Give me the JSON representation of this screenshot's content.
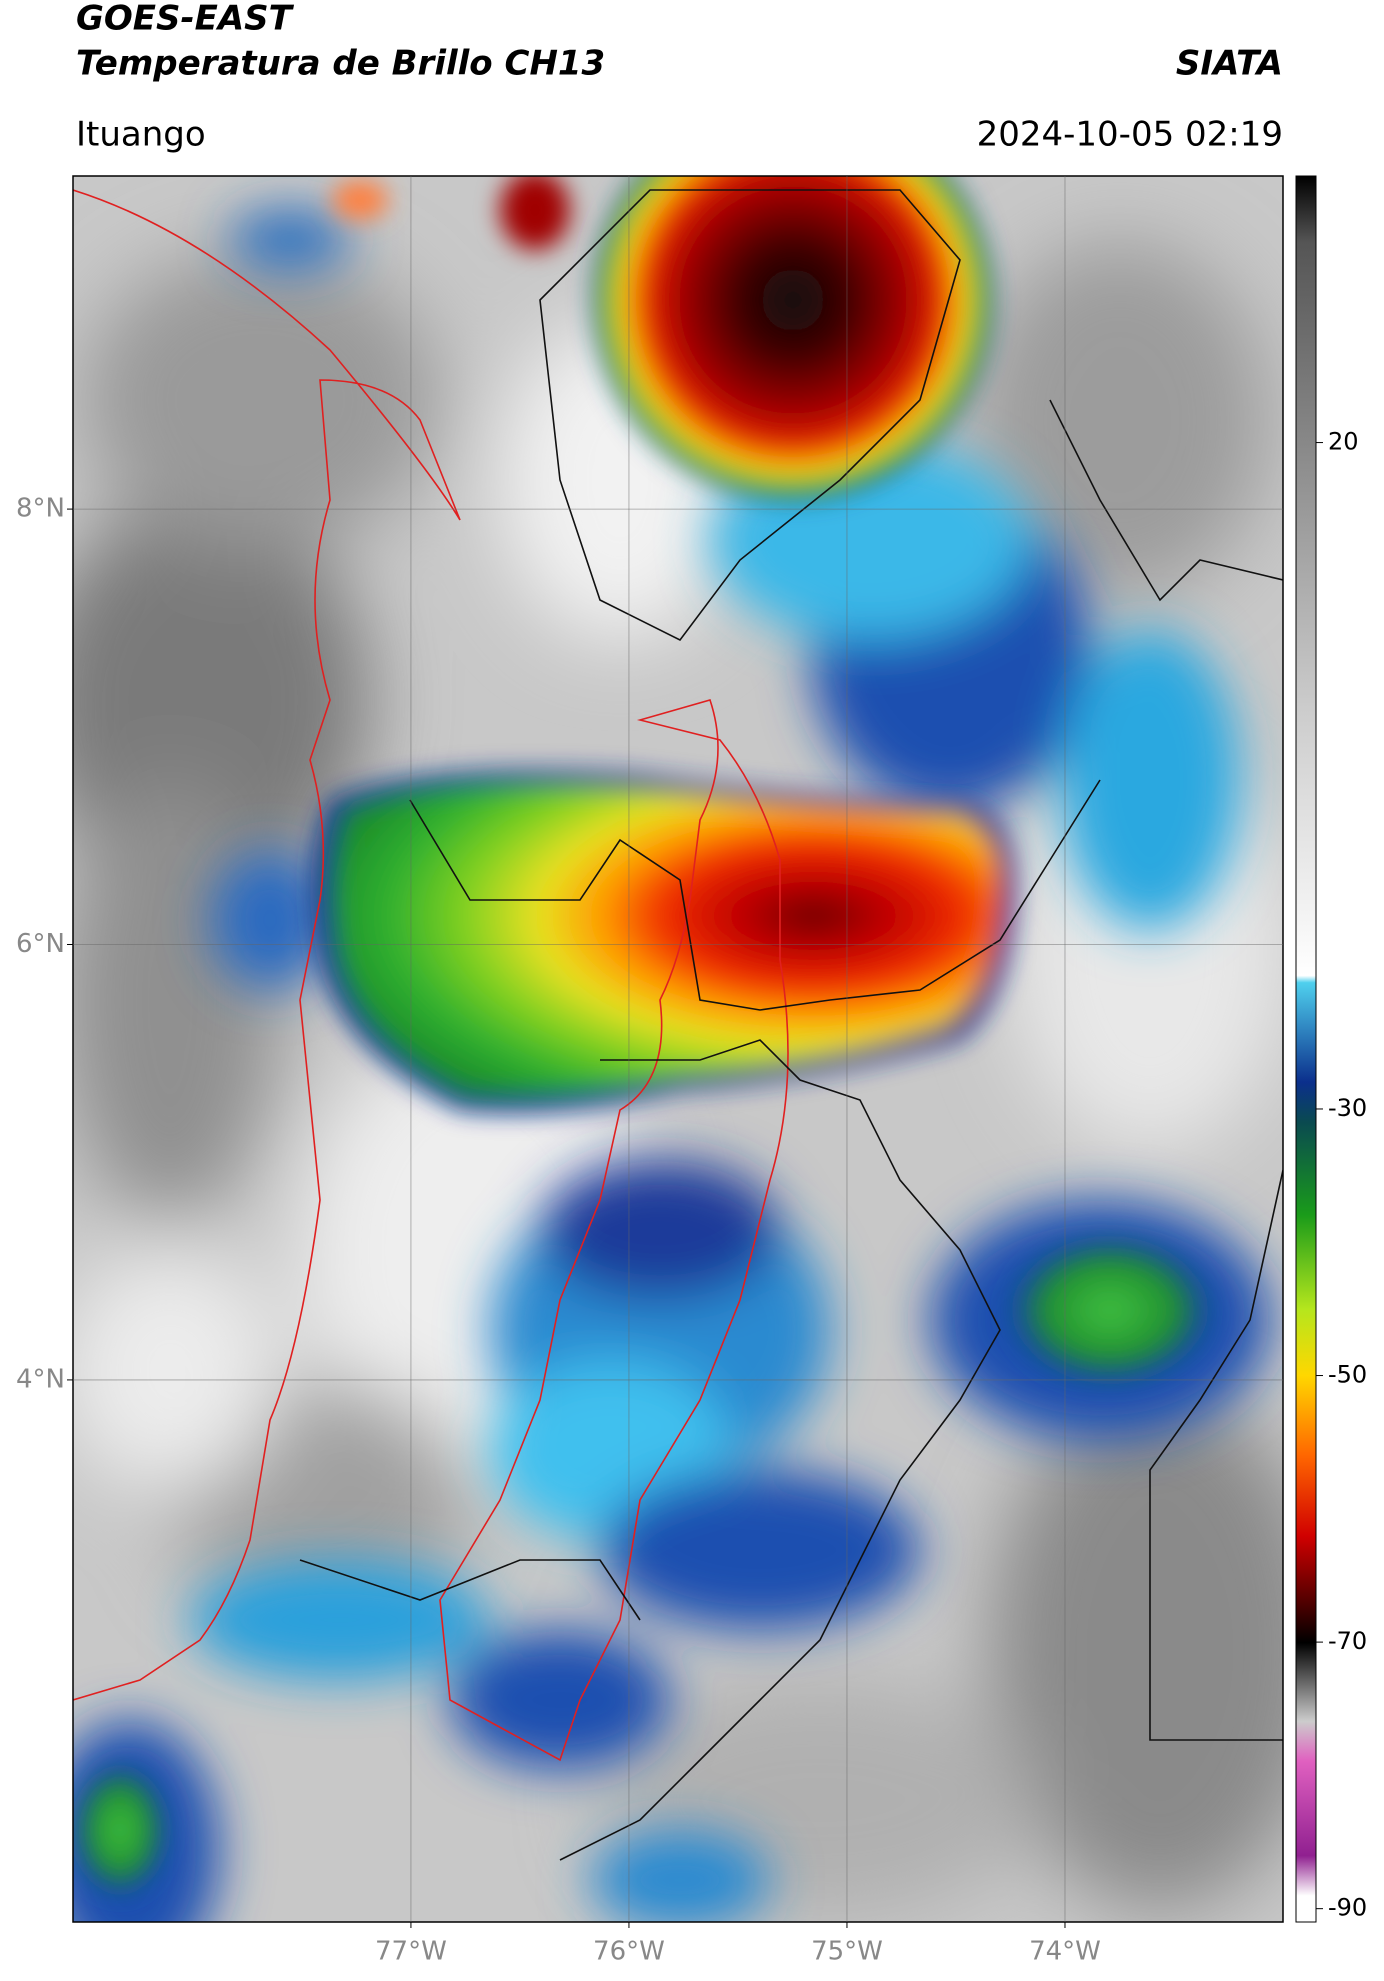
{
  "header": {
    "satellite": "GOES-EAST",
    "product": "Temperatura de Brillo CH13",
    "agency": "SIATA",
    "location": "Ituango",
    "datetime": "2024-10-05 02:19"
  },
  "map": {
    "xlim": [
      -78.55,
      -73.0
    ],
    "ylim": [
      1.51,
      9.53
    ],
    "xticks": [
      {
        "value": -77,
        "label": "77°W"
      },
      {
        "value": -76,
        "label": "76°W"
      },
      {
        "value": -75,
        "label": "75°W"
      },
      {
        "value": -74,
        "label": "74°W"
      }
    ],
    "yticks": [
      {
        "value": 8,
        "label": "8°N"
      },
      {
        "value": 6,
        "label": "6°N"
      },
      {
        "value": 4,
        "label": "4°N"
      }
    ]
  },
  "colorbar": {
    "range": [
      40,
      -91
    ],
    "ticks": [
      20,
      -30,
      -50,
      -70,
      -90
    ]
  }
}
